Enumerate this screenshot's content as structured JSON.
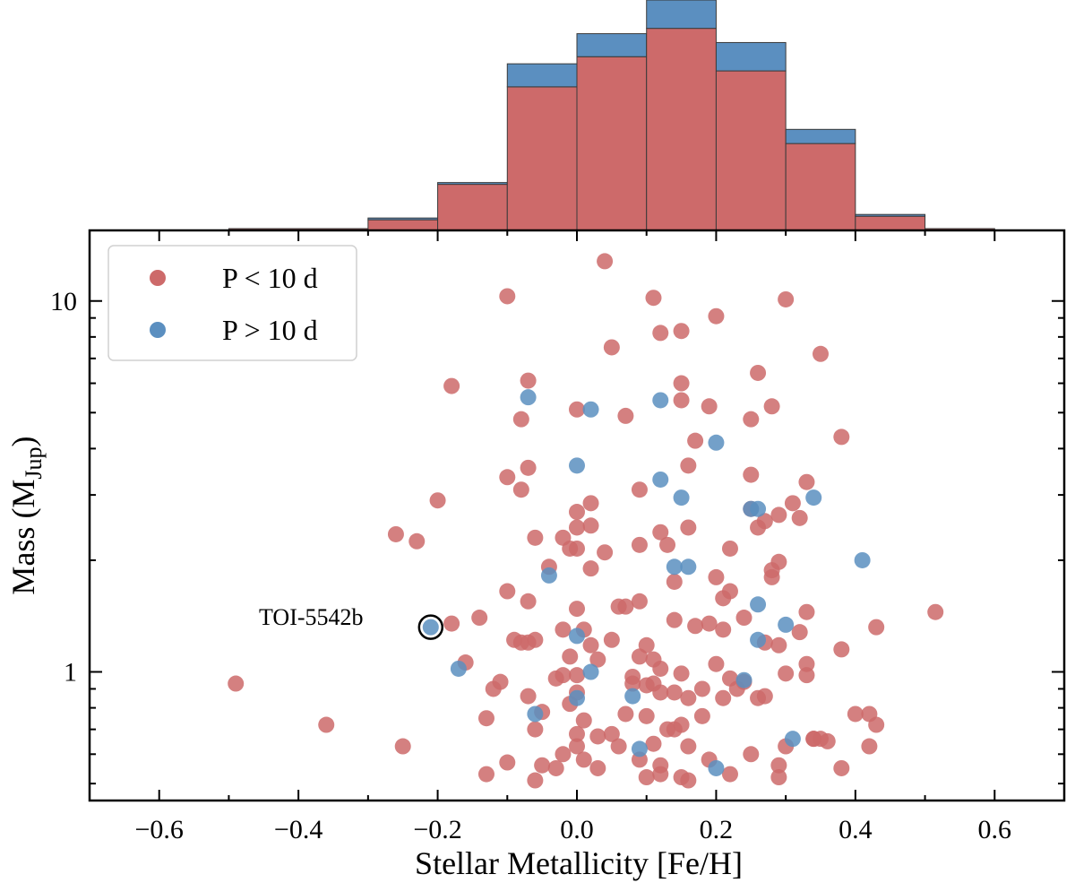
{
  "chart_data": [
    {
      "type": "histogram",
      "description_role": "top-marginal-histogram",
      "x_edges": [
        -0.5,
        -0.3,
        -0.2,
        -0.1,
        0.0,
        0.1,
        0.2,
        0.3,
        0.4,
        0.5,
        0.6
      ],
      "series": [
        {
          "name": "P < 10 d",
          "color": "#cd6a6a",
          "values": [
            1,
            6,
            26,
            81,
            98,
            114,
            90,
            49,
            8,
            1
          ]
        },
        {
          "name": "P > 10 d",
          "color": "#5b8fc0",
          "values": [
            0,
            1,
            1,
            13,
            13,
            16,
            16,
            8,
            1,
            0
          ]
        }
      ],
      "stacked": true
    },
    {
      "type": "scatter",
      "xlabel": "Stellar Metallicity [Fe/H]",
      "ylabel_main": "Mass (M",
      "ylabel_sub": "Jup",
      "ylabel_close": ")",
      "xlim": [
        -0.7,
        0.7
      ],
      "ylim": [
        0.45,
        15.5
      ],
      "yscale": "log",
      "x_ticks": [
        -0.6,
        -0.4,
        -0.2,
        0.0,
        0.2,
        0.4,
        0.6
      ],
      "x_tick_labels": [
        "−0.6",
        "−0.4",
        "−0.2",
        "0.0",
        "0.2",
        "0.4",
        "0.6"
      ],
      "y_ticks": [
        1,
        10
      ],
      "y_tick_labels": [
        "1",
        "10"
      ],
      "legend": {
        "position": "top-left",
        "entries": [
          "P < 10 d",
          "P > 10 d"
        ]
      },
      "series": [
        {
          "name": "P < 10 d",
          "color": "#cd6a6a",
          "points": [
            [
              -0.49,
              0.93
            ],
            [
              -0.36,
              0.72
            ],
            [
              -0.25,
              0.63
            ],
            [
              -0.26,
              2.35
            ],
            [
              -0.23,
              2.25
            ],
            [
              -0.2,
              2.9
            ],
            [
              -0.18,
              5.9
            ],
            [
              -0.18,
              1.35
            ],
            [
              -0.16,
              1.06
            ],
            [
              -0.14,
              1.4
            ],
            [
              -0.13,
              0.75
            ],
            [
              -0.13,
              0.53
            ],
            [
              -0.12,
              0.9
            ],
            [
              -0.11,
              0.94
            ],
            [
              -0.1,
              0.57
            ],
            [
              -0.1,
              1.65
            ],
            [
              -0.1,
              3.35
            ],
            [
              -0.1,
              10.3
            ],
            [
              -0.09,
              1.22
            ],
            [
              -0.08,
              4.8
            ],
            [
              -0.08,
              3.1
            ],
            [
              -0.08,
              1.2
            ],
            [
              -0.07,
              0.86
            ],
            [
              -0.07,
              1.2
            ],
            [
              -0.07,
              1.55
            ],
            [
              -0.07,
              3.55
            ],
            [
              -0.07,
              6.1
            ],
            [
              -0.06,
              0.7
            ],
            [
              -0.06,
              0.51
            ],
            [
              -0.06,
              2.3
            ],
            [
              -0.06,
              1.22
            ],
            [
              -0.05,
              0.78
            ],
            [
              -0.05,
              0.56
            ],
            [
              -0.04,
              1.92
            ],
            [
              -0.03,
              0.96
            ],
            [
              -0.03,
              0.55
            ],
            [
              -0.02,
              0.98
            ],
            [
              -0.02,
              0.6
            ],
            [
              -0.02,
              2.3
            ],
            [
              -0.02,
              1.3
            ],
            [
              -0.01,
              2.15
            ],
            [
              -0.01,
              1.1
            ],
            [
              -0.01,
              0.82
            ],
            [
              0.0,
              1.48
            ],
            [
              0.0,
              0.98
            ],
            [
              0.0,
              0.68
            ],
            [
              0.0,
              0.88
            ],
            [
              0.0,
              0.63
            ],
            [
              0.0,
              2.15
            ],
            [
              0.0,
              2.45
            ],
            [
              0.0,
              2.7
            ],
            [
              0.0,
              5.1
            ],
            [
              0.01,
              0.58
            ],
            [
              0.01,
              1.3
            ],
            [
              0.01,
              0.74
            ],
            [
              0.02,
              1.18
            ],
            [
              0.02,
              1.9
            ],
            [
              0.02,
              2.85
            ],
            [
              0.02,
              2.48
            ],
            [
              0.03,
              0.55
            ],
            [
              0.03,
              0.67
            ],
            [
              0.03,
              1.08
            ],
            [
              0.04,
              2.1
            ],
            [
              0.04,
              12.8
            ],
            [
              0.05,
              0.68
            ],
            [
              0.05,
              1.22
            ],
            [
              0.05,
              7.5
            ],
            [
              0.06,
              1.5
            ],
            [
              0.06,
              0.63
            ],
            [
              0.07,
              0.77
            ],
            [
              0.07,
              1.5
            ],
            [
              0.07,
              4.9
            ],
            [
              0.08,
              0.93
            ],
            [
              0.08,
              0.97
            ],
            [
              0.09,
              0.58
            ],
            [
              0.09,
              1.1
            ],
            [
              0.09,
              1.55
            ],
            [
              0.09,
              3.1
            ],
            [
              0.09,
              2.2
            ],
            [
              0.1,
              0.52
            ],
            [
              0.1,
              0.92
            ],
            [
              0.1,
              0.76
            ],
            [
              0.1,
              1.18
            ],
            [
              0.11,
              0.93
            ],
            [
              0.11,
              0.64
            ],
            [
              0.11,
              1.08
            ],
            [
              0.11,
              10.2
            ],
            [
              0.12,
              0.56
            ],
            [
              0.12,
              0.88
            ],
            [
              0.12,
              1.02
            ],
            [
              0.12,
              0.53
            ],
            [
              0.12,
              2.38
            ],
            [
              0.12,
              8.2
            ],
            [
              0.13,
              0.7
            ],
            [
              0.13,
              2.2
            ],
            [
              0.14,
              0.7
            ],
            [
              0.14,
              1.38
            ],
            [
              0.14,
              1.75
            ],
            [
              0.14,
              0.88
            ],
            [
              0.15,
              0.72
            ],
            [
              0.15,
              0.99
            ],
            [
              0.15,
              0.52
            ],
            [
              0.15,
              5.4
            ],
            [
              0.15,
              6
            ],
            [
              0.15,
              8.3
            ],
            [
              0.16,
              0.51
            ],
            [
              0.16,
              0.85
            ],
            [
              0.16,
              2.45
            ],
            [
              0.16,
              3.6
            ],
            [
              0.16,
              0.63
            ],
            [
              0.17,
              1.33
            ],
            [
              0.17,
              4.2
            ],
            [
              0.18,
              0.76
            ],
            [
              0.18,
              0.9
            ],
            [
              0.19,
              0.58
            ],
            [
              0.19,
              1.35
            ],
            [
              0.19,
              5.2
            ],
            [
              0.2,
              1.05
            ],
            [
              0.2,
              1.8
            ],
            [
              0.2,
              9.1
            ],
            [
              0.21,
              0.85
            ],
            [
              0.21,
              1.58
            ],
            [
              0.21,
              1.3
            ],
            [
              0.22,
              0.53
            ],
            [
              0.22,
              1.65
            ],
            [
              0.22,
              0.96
            ],
            [
              0.22,
              2.15
            ],
            [
              0.23,
              0.9
            ],
            [
              0.24,
              0.94
            ],
            [
              0.24,
              1.4
            ],
            [
              0.25,
              0.6
            ],
            [
              0.25,
              3.4
            ],
            [
              0.25,
              4.8
            ],
            [
              0.25,
              2.75
            ],
            [
              0.26,
              2.45
            ],
            [
              0.26,
              0.85
            ],
            [
              0.26,
              6.4
            ],
            [
              0.27,
              1.2
            ],
            [
              0.27,
              0.86
            ],
            [
              0.27,
              2.55
            ],
            [
              0.28,
              1.88
            ],
            [
              0.28,
              1.8
            ],
            [
              0.28,
              5.2
            ],
            [
              0.29,
              0.52
            ],
            [
              0.29,
              0.56
            ],
            [
              0.29,
              1.18
            ],
            [
              0.29,
              2.65
            ],
            [
              0.29,
              1.98
            ],
            [
              0.3,
              0.63
            ],
            [
              0.3,
              0.99
            ],
            [
              0.3,
              10.1
            ],
            [
              0.31,
              2.85
            ],
            [
              0.32,
              1.28
            ],
            [
              0.32,
              2.6
            ],
            [
              0.33,
              1.05
            ],
            [
              0.33,
              0.98
            ],
            [
              0.33,
              1.45
            ],
            [
              0.33,
              3.25
            ],
            [
              0.34,
              0.66
            ],
            [
              0.34,
              0.66
            ],
            [
              0.35,
              0.66
            ],
            [
              0.35,
              7.2
            ],
            [
              0.36,
              0.65
            ],
            [
              0.38,
              0.55
            ],
            [
              0.38,
              1.15
            ],
            [
              0.38,
              4.3
            ],
            [
              0.4,
              0.77
            ],
            [
              0.42,
              0.63
            ],
            [
              0.42,
              0.77
            ],
            [
              0.43,
              0.72
            ],
            [
              0.43,
              1.32
            ],
            [
              0.515,
              1.45
            ]
          ]
        },
        {
          "name": "P > 10 d",
          "color": "#5b8fc0",
          "points": [
            [
              -0.21,
              1.32
            ],
            [
              -0.17,
              1.02
            ],
            [
              -0.07,
              5.5
            ],
            [
              -0.06,
              0.77
            ],
            [
              -0.04,
              1.82
            ],
            [
              0.0,
              0.85
            ],
            [
              0.0,
              3.6
            ],
            [
              0.0,
              1.25
            ],
            [
              0.02,
              1.0
            ],
            [
              0.02,
              5.1
            ],
            [
              0.08,
              0.86
            ],
            [
              0.09,
              0.62
            ],
            [
              0.12,
              3.3
            ],
            [
              0.12,
              5.4
            ],
            [
              0.14,
              1.92
            ],
            [
              0.15,
              2.95
            ],
            [
              0.16,
              1.92
            ],
            [
              0.2,
              4.15
            ],
            [
              0.2,
              0.55
            ],
            [
              0.24,
              0.95
            ],
            [
              0.25,
              2.75
            ],
            [
              0.26,
              2.75
            ],
            [
              0.26,
              1.22
            ],
            [
              0.26,
              1.52
            ],
            [
              0.3,
              1.34
            ],
            [
              0.31,
              0.66
            ],
            [
              0.34,
              2.95
            ],
            [
              0.41,
              2.0
            ]
          ]
        }
      ],
      "annotation": {
        "label": "TOI-5542b",
        "x": -0.21,
        "y": 1.32
      }
    }
  ]
}
